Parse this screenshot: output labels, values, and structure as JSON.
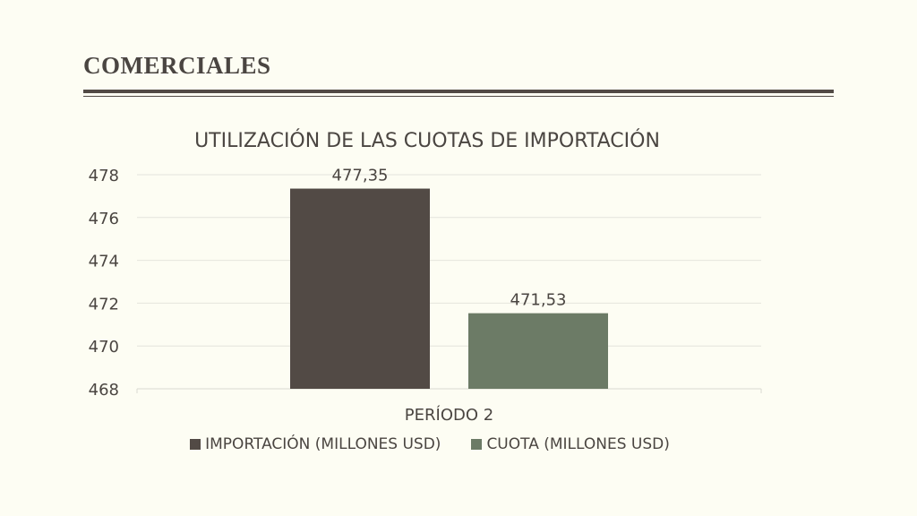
{
  "slide": {
    "title": "COMERCIALES"
  },
  "chart_data": {
    "type": "bar",
    "title": "UTILIZACIÓN DE LAS CUOTAS DE IMPORTACIÓN",
    "categories": [
      "PERÍODO 2"
    ],
    "series": [
      {
        "name": "IMPORTACIÓN (MILLONES USD)",
        "values": [
          477.35
        ],
        "labels": [
          "477,35"
        ],
        "color": "#524a45"
      },
      {
        "name": "CUOTA (MILLONES USD)",
        "values": [
          471.53
        ],
        "labels": [
          "471,53"
        ],
        "color": "#6c7b66"
      }
    ],
    "ylim": [
      468,
      478
    ],
    "yticks": [
      "468",
      "470",
      "472",
      "474",
      "476",
      "478"
    ],
    "ytick_values": [
      468,
      470,
      472,
      474,
      476,
      478
    ],
    "grid": true,
    "legend_position": "bottom"
  }
}
